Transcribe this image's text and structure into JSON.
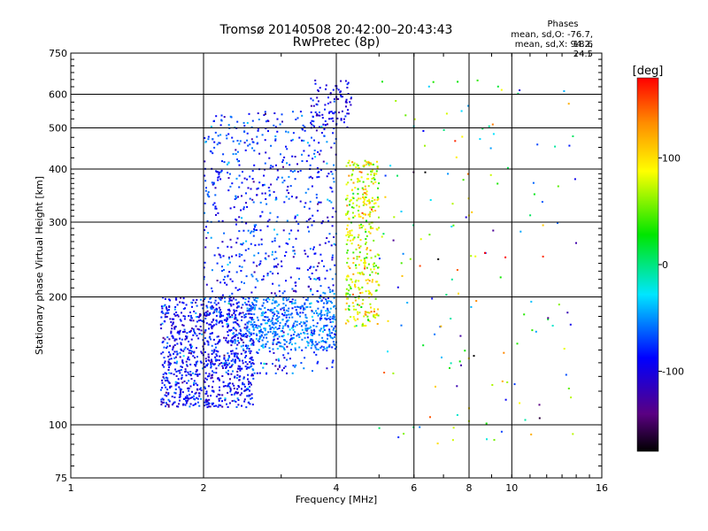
{
  "header": {
    "title": "Tromsø 20140508 20:42:00–20:43:43",
    "subtitle": "RwPretec (8p)"
  },
  "stats": {
    "label": "Phases",
    "line_o": "mean, sd,O: -76.7, 18.6",
    "line_x": "mean, sd,X:  94.2, 24.5"
  },
  "colorbar": {
    "unit_label": "[deg]",
    "ticks": [
      {
        "value": 100,
        "label": "100"
      },
      {
        "value": 0,
        "label": "0"
      },
      {
        "value": -100,
        "label": "-100"
      }
    ],
    "range": [
      -175,
      175
    ]
  },
  "chart_data": {
    "type": "scatter",
    "title": "Tromsø 20140508 20:42:00–20:43:43",
    "subtitle": "RwPretec (8p)",
    "xlabel": "Frequency [MHz]",
    "ylabel": "Stationary phase Virtual Height [km]",
    "x_scale": "log",
    "y_scale": "log",
    "xlim": [
      1,
      16
    ],
    "ylim": [
      75,
      750
    ],
    "x_ticks": [
      1,
      2,
      4,
      6,
      8,
      10,
      16
    ],
    "x_tick_labels": [
      "1",
      "2",
      "4",
      "6",
      "8",
      "10",
      "16"
    ],
    "y_ticks": [
      75,
      100,
      200,
      300,
      400,
      500,
      600,
      750
    ],
    "y_tick_labels": [
      "75",
      "100",
      "200",
      "300",
      "400",
      "500",
      "600",
      "750"
    ],
    "grid": true,
    "color_by": "phase [deg]",
    "clusters": [
      {
        "region": "O-trace low",
        "x_range": [
          1.6,
          2.6
        ],
        "y_range": [
          110,
          200
        ],
        "phase_mean": -90,
        "phase_sd": 20,
        "density": "high"
      },
      {
        "region": "O-trace main",
        "x_range": [
          2.0,
          4.0
        ],
        "y_range": [
          130,
          550
        ],
        "phase_mean": -80,
        "phase_sd": 22,
        "density": "high"
      },
      {
        "region": "O-trace cyan band",
        "x_range": [
          2.5,
          4.0
        ],
        "y_range": [
          150,
          200
        ],
        "phase_mean": -55,
        "phase_sd": 12,
        "density": "medium"
      },
      {
        "region": "O-trace top",
        "x_range": [
          3.5,
          4.4
        ],
        "y_range": [
          500,
          650
        ],
        "phase_mean": -100,
        "phase_sd": 15,
        "density": "low"
      },
      {
        "region": "X-trace",
        "x_range": [
          4.2,
          5.0
        ],
        "y_range": [
          170,
          420
        ],
        "phase_mean": 80,
        "phase_sd": 30,
        "density": "medium"
      },
      {
        "region": "high-frequency scatter",
        "x_range": [
          5.0,
          14.0
        ],
        "y_range": [
          90,
          650
        ],
        "phase_mean": 20,
        "phase_sd": 90,
        "density": "sparse"
      }
    ]
  }
}
